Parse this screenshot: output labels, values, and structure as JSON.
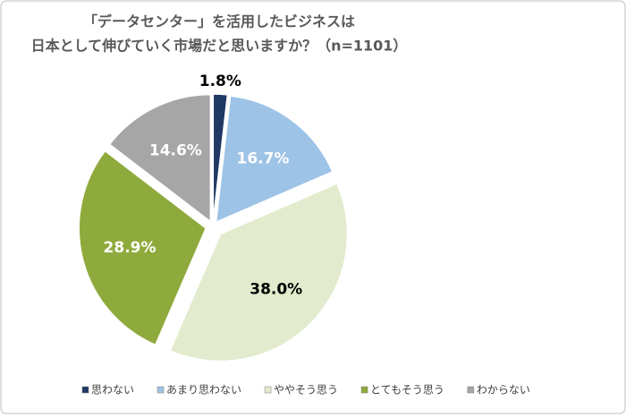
{
  "chart_data": {
    "type": "pie",
    "title": [
      "「データセンター」を活用したビジネスは",
      "日本として伸びていく市場だと思いますか？（n=1101）"
    ],
    "categories": [
      "思わない",
      "あまり思わない",
      "ややそう思う",
      "とてもそう思う",
      "わからない"
    ],
    "values": [
      1.8,
      16.7,
      38.0,
      28.9,
      14.6
    ],
    "value_labels": [
      "1.8%",
      "16.7%",
      "38.0%",
      "28.9%",
      "14.6%"
    ],
    "colors": [
      "#1f3864",
      "#9dc3e6",
      "#e2ebcd",
      "#8faa3c",
      "#a6a6a6"
    ],
    "legend": "bottom"
  }
}
